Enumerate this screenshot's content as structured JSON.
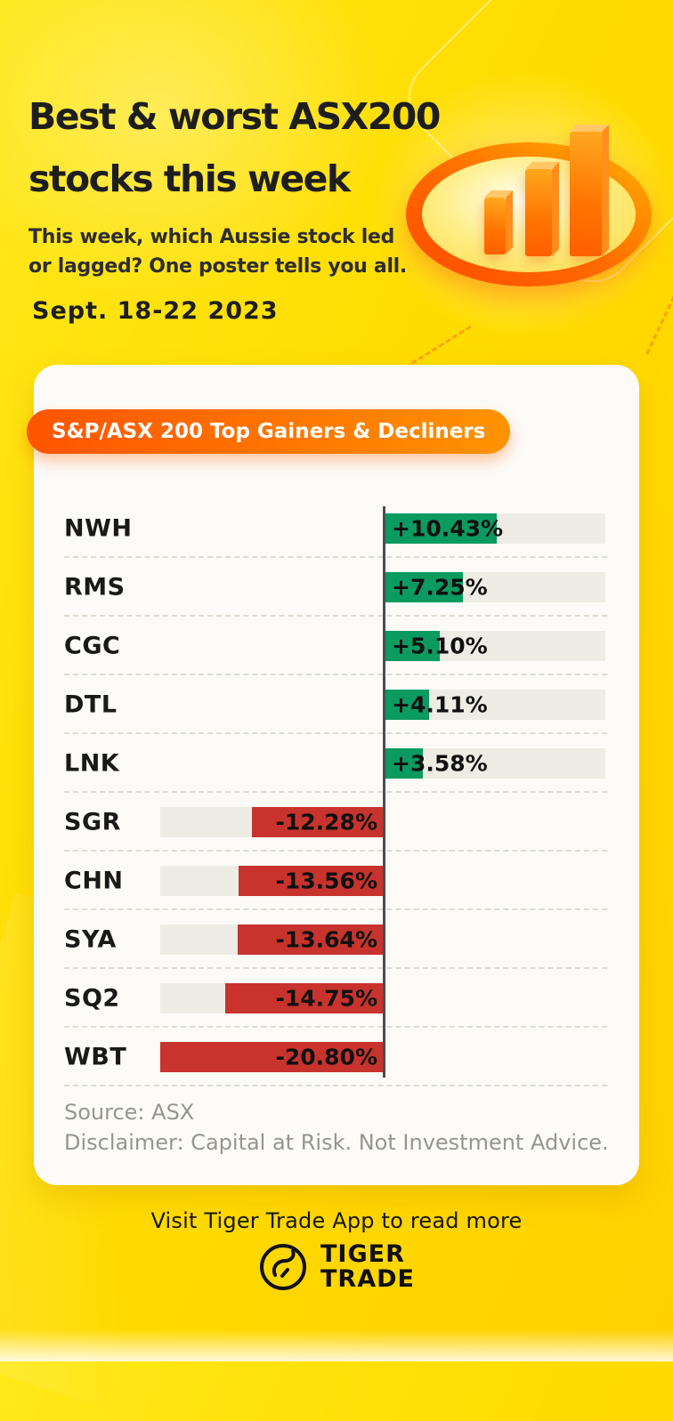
{
  "header": {
    "title_line1": "Best & worst ASX200",
    "title_line2": "stocks this week",
    "subtitle_line1": "This week, which Aussie stock led",
    "subtitle_line2": "or lagged? One poster tells you all.",
    "date_range": "Sept. 18-22 2023"
  },
  "panel": {
    "badge_label": "S&P/ASX 200 Top Gainers & Decliners",
    "source_text": "Source: ASX",
    "disclaimer_text": "Disclaimer: Capital at Risk. Not Investment Advice."
  },
  "footer": {
    "cta_text": "Visit Tiger Trade App to read more",
    "brand_line1": "TIGER",
    "brand_line2": "TRADE"
  },
  "colors": {
    "gain_green": "#0b9a60",
    "decline_red": "#c8332d",
    "track_gray": "#edece5",
    "axis_gray": "#4c4c4c",
    "badge_gradient_start": "#ff5400",
    "badge_gradient_end": "#ff9300",
    "background_yellow": "#ffdc00",
    "accent_orange": "#ff7300"
  },
  "chart_data": {
    "type": "bar",
    "orientation": "horizontal",
    "title": "S&P/ASX 200 Top Gainers & Decliners",
    "categories": [
      "NWH",
      "RMS",
      "CGC",
      "DTL",
      "LNK",
      "SGR",
      "CHN",
      "SYA",
      "SQ2",
      "WBT"
    ],
    "values": [
      10.43,
      7.25,
      5.1,
      4.11,
      3.58,
      -12.28,
      -13.56,
      -13.64,
      -14.75,
      -20.8
    ],
    "value_labels": [
      "+10.43%",
      "+7.25%",
      "+5.10%",
      "+4.11%",
      "+3.58%",
      "-12.28%",
      "-13.56%",
      "-13.64%",
      "-14.75%",
      "-20.80%"
    ],
    "xlim": [
      -20.8,
      10.43
    ],
    "baseline": 0,
    "legend": "none",
    "grid": "dashed-row-separators"
  }
}
